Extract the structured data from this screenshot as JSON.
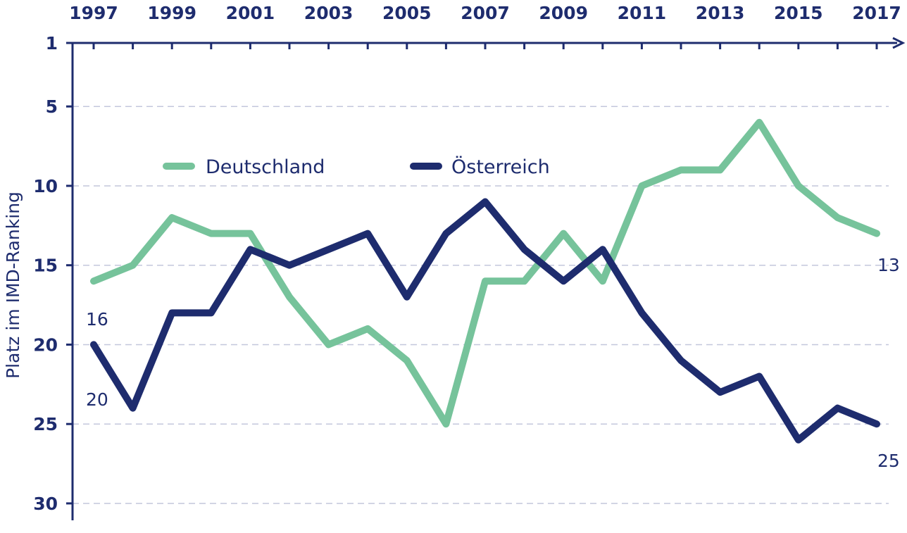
{
  "chart_data": {
    "type": "line",
    "x": [
      1997,
      1998,
      1999,
      2000,
      2001,
      2002,
      2003,
      2004,
      2005,
      2006,
      2007,
      2008,
      2009,
      2010,
      2011,
      2012,
      2013,
      2014,
      2015,
      2016,
      2017
    ],
    "x_tick_labels": [
      "1997",
      "1999",
      "2001",
      "2003",
      "2005",
      "2007",
      "2009",
      "2011",
      "2013",
      "2015",
      "2017"
    ],
    "y_tick_labels": [
      "1",
      "5",
      "10",
      "15",
      "20",
      "25",
      "30"
    ],
    "ylim": [
      1,
      30
    ],
    "y_inverted": true,
    "x_axis_position": "top",
    "grid": "horizontal dashed",
    "ylabel": "Platz im IMD-Ranking",
    "xlabel": "",
    "title": "",
    "legend_position": "top-left inside",
    "series": [
      {
        "name": "Deutschland",
        "color": "#76c39b",
        "values": [
          16,
          15,
          12,
          13,
          13,
          17,
          20,
          19,
          21,
          25,
          16,
          16,
          13,
          16,
          10,
          9,
          9,
          6,
          10,
          12,
          13
        ],
        "start_label": "16",
        "end_label": "13"
      },
      {
        "name": "Österreich",
        "color": "#1e2c6e",
        "values": [
          20,
          24,
          18,
          18,
          14,
          15,
          14,
          13,
          17,
          13,
          11,
          14,
          16,
          14,
          18,
          21,
          23,
          22,
          26,
          24,
          25
        ],
        "start_label": "20",
        "end_label": "25"
      }
    ]
  }
}
